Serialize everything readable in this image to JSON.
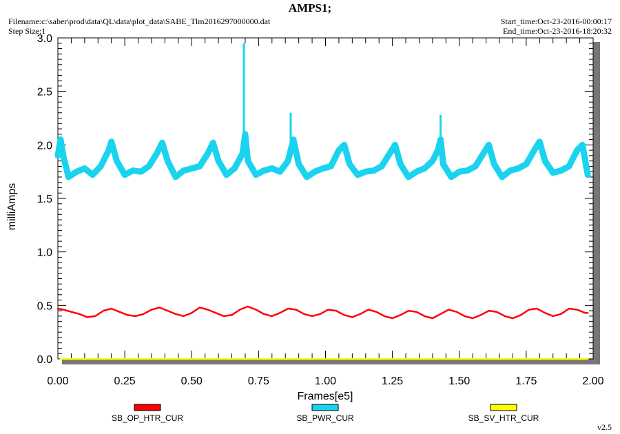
{
  "header": {
    "title": "AMPS1;",
    "filename": "Filename:c:\\saber\\prod\\data\\QL\\data\\plot_data\\SABE_Tlm2016297000000.dat",
    "step_size": "Step Size:1",
    "start_time": "Start_time:Oct-23-2016-00:00:17",
    "end_time": "End_time:Oct-23-2016-18:20:32"
  },
  "footer": {
    "version": "v2.5"
  },
  "chart_data": {
    "type": "line",
    "title": "AMPS1;",
    "xlabel": "Frames[e5]",
    "ylabel": "milliAmps",
    "xlim": [
      0.0,
      2.0
    ],
    "ylim": [
      0.0,
      3.0
    ],
    "x_ticks": [
      "0.00",
      "0.25",
      "0.50",
      "0.75",
      "1.00",
      "1.25",
      "1.50",
      "1.75",
      "2.00"
    ],
    "y_ticks": [
      "0.0",
      "0.5",
      "1.0",
      "1.5",
      "2.0",
      "2.5",
      "3.0"
    ],
    "grid": false,
    "legend_position": "bottom",
    "series": [
      {
        "name": "SB_OP_HTR_CUR",
        "color": "#ff0000",
        "x": [
          0.0,
          0.02,
          0.05,
          0.08,
          0.11,
          0.14,
          0.17,
          0.2,
          0.23,
          0.26,
          0.29,
          0.32,
          0.35,
          0.38,
          0.41,
          0.44,
          0.47,
          0.5,
          0.53,
          0.56,
          0.59,
          0.62,
          0.65,
          0.68,
          0.71,
          0.74,
          0.77,
          0.8,
          0.83,
          0.86,
          0.89,
          0.92,
          0.95,
          0.98,
          1.01,
          1.04,
          1.07,
          1.1,
          1.13,
          1.16,
          1.19,
          1.22,
          1.25,
          1.28,
          1.31,
          1.34,
          1.37,
          1.4,
          1.43,
          1.46,
          1.49,
          1.52,
          1.55,
          1.58,
          1.61,
          1.64,
          1.67,
          1.7,
          1.73,
          1.76,
          1.79,
          1.82,
          1.85,
          1.88,
          1.91,
          1.94,
          1.97,
          1.98
        ],
        "y": [
          0.47,
          0.46,
          0.44,
          0.42,
          0.39,
          0.4,
          0.45,
          0.47,
          0.44,
          0.41,
          0.4,
          0.42,
          0.46,
          0.48,
          0.45,
          0.42,
          0.4,
          0.43,
          0.48,
          0.46,
          0.43,
          0.4,
          0.41,
          0.46,
          0.49,
          0.46,
          0.42,
          0.4,
          0.43,
          0.47,
          0.46,
          0.42,
          0.4,
          0.42,
          0.46,
          0.45,
          0.41,
          0.39,
          0.42,
          0.46,
          0.44,
          0.4,
          0.38,
          0.41,
          0.45,
          0.44,
          0.4,
          0.38,
          0.42,
          0.46,
          0.44,
          0.4,
          0.38,
          0.41,
          0.45,
          0.44,
          0.4,
          0.38,
          0.41,
          0.46,
          0.47,
          0.43,
          0.4,
          0.42,
          0.47,
          0.46,
          0.43,
          0.43
        ]
      },
      {
        "name": "SB_PWR_CUR",
        "color": "#1ad3ef",
        "x": [
          0.0,
          0.01,
          0.02,
          0.04,
          0.07,
          0.1,
          0.13,
          0.16,
          0.19,
          0.2,
          0.22,
          0.25,
          0.28,
          0.31,
          0.34,
          0.37,
          0.39,
          0.41,
          0.44,
          0.47,
          0.5,
          0.53,
          0.56,
          0.58,
          0.6,
          0.63,
          0.66,
          0.69,
          0.7,
          0.71,
          0.74,
          0.77,
          0.8,
          0.83,
          0.86,
          0.88,
          0.9,
          0.93,
          0.96,
          0.99,
          1.02,
          1.05,
          1.07,
          1.09,
          1.12,
          1.15,
          1.18,
          1.21,
          1.24,
          1.26,
          1.28,
          1.31,
          1.34,
          1.37,
          1.4,
          1.42,
          1.43,
          1.44,
          1.47,
          1.5,
          1.53,
          1.56,
          1.59,
          1.61,
          1.63,
          1.66,
          1.69,
          1.72,
          1.75,
          1.78,
          1.8,
          1.82,
          1.85,
          1.88,
          1.91,
          1.94,
          1.96,
          1.98
        ],
        "y": [
          1.9,
          2.05,
          1.9,
          1.7,
          1.75,
          1.78,
          1.72,
          1.8,
          1.95,
          2.03,
          1.85,
          1.72,
          1.76,
          1.75,
          1.8,
          1.92,
          2.02,
          1.85,
          1.7,
          1.76,
          1.78,
          1.8,
          1.92,
          2.02,
          1.85,
          1.72,
          1.78,
          1.92,
          2.1,
          1.85,
          1.72,
          1.76,
          1.78,
          1.75,
          1.85,
          2.05,
          1.82,
          1.7,
          1.75,
          1.78,
          1.8,
          1.95,
          2.0,
          1.82,
          1.72,
          1.75,
          1.76,
          1.8,
          1.92,
          2.0,
          1.82,
          1.7,
          1.75,
          1.78,
          1.85,
          1.95,
          2.05,
          1.82,
          1.7,
          1.75,
          1.76,
          1.8,
          1.92,
          2.0,
          1.82,
          1.7,
          1.76,
          1.78,
          1.82,
          1.95,
          2.03,
          1.85,
          1.74,
          1.76,
          1.8,
          1.95,
          2.0,
          1.72
        ],
        "spikes": [
          {
            "x": 0.695,
            "y": 2.95
          },
          {
            "x": 0.87,
            "y": 2.3
          },
          {
            "x": 1.43,
            "y": 2.28
          }
        ]
      },
      {
        "name": "SB_SV_HTR_CUR",
        "color": "#ffff00",
        "x": [
          0.01,
          1.98
        ],
        "y": [
          0.0,
          0.0
        ]
      }
    ]
  }
}
